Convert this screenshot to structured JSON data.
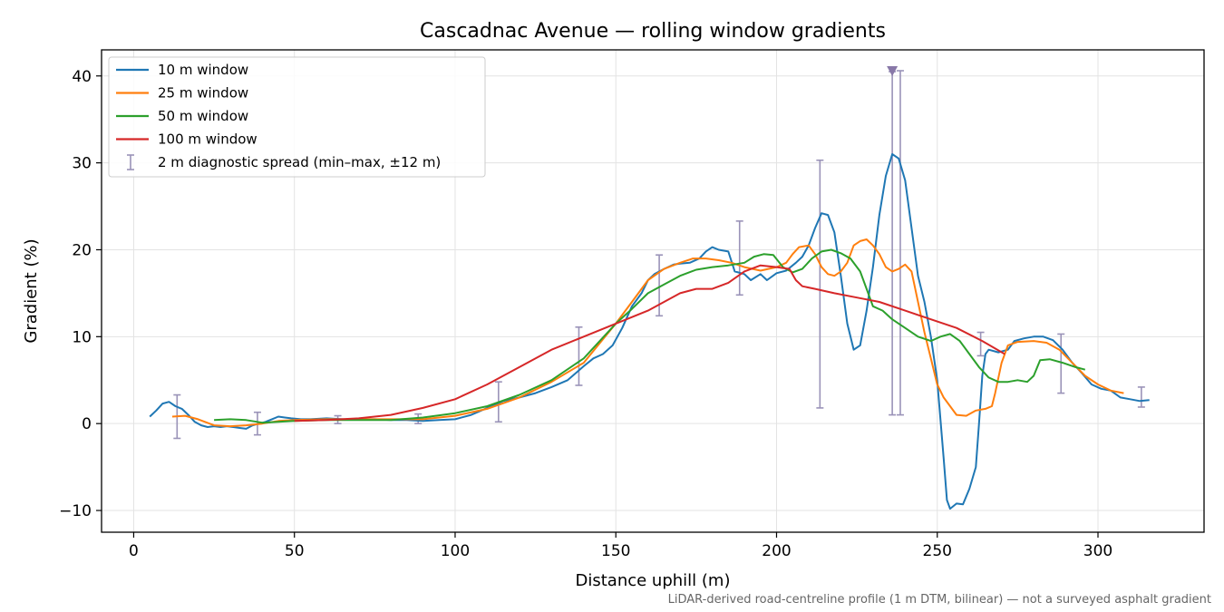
{
  "chart_data": {
    "type": "line",
    "title": "Cascadnac Avenue — rolling window gradients",
    "xlabel": "Distance uphill (m)",
    "ylabel": "Gradient (%)",
    "xlim": [
      -10,
      333
    ],
    "ylim": [
      -12.5,
      43
    ],
    "xticks": [
      0,
      50,
      100,
      150,
      200,
      250,
      300
    ],
    "yticks": [
      -10,
      0,
      10,
      20,
      30,
      40
    ],
    "xtick_labels": [
      "0",
      "50",
      "100",
      "150",
      "200",
      "250",
      "300"
    ],
    "ytick_labels": [
      "−10",
      "0",
      "10",
      "20",
      "30",
      "40"
    ],
    "grid": true,
    "legend_position": "top-left",
    "footnote": "LiDAR-derived road-centreline profile (1 m DTM, bilinear) — not a surveyed asphalt gradient",
    "series": [
      {
        "name": "10 m window",
        "color": "#1f77b4",
        "points": [
          [
            5,
            0.8
          ],
          [
            7,
            1.5
          ],
          [
            9,
            2.3
          ],
          [
            11,
            2.5
          ],
          [
            13,
            2.0
          ],
          [
            15,
            1.7
          ],
          [
            17,
            1.0
          ],
          [
            19,
            0.2
          ],
          [
            21,
            -0.2
          ],
          [
            23,
            -0.4
          ],
          [
            25,
            -0.3
          ],
          [
            27,
            -0.4
          ],
          [
            29,
            -0.3
          ],
          [
            31,
            -0.4
          ],
          [
            33,
            -0.5
          ],
          [
            35,
            -0.6
          ],
          [
            37,
            -0.2
          ],
          [
            39,
            0.0
          ],
          [
            41,
            0.2
          ],
          [
            43,
            0.5
          ],
          [
            45,
            0.8
          ],
          [
            47,
            0.7
          ],
          [
            49,
            0.6
          ],
          [
            52,
            0.5
          ],
          [
            55,
            0.5
          ],
          [
            60,
            0.6
          ],
          [
            65,
            0.5
          ],
          [
            70,
            0.5
          ],
          [
            75,
            0.5
          ],
          [
            80,
            0.4
          ],
          [
            85,
            0.4
          ],
          [
            90,
            0.3
          ],
          [
            95,
            0.4
          ],
          [
            100,
            0.5
          ],
          [
            105,
            1.0
          ],
          [
            110,
            1.8
          ],
          [
            115,
            2.6
          ],
          [
            120,
            3.0
          ],
          [
            125,
            3.5
          ],
          [
            130,
            4.2
          ],
          [
            135,
            5.0
          ],
          [
            140,
            6.6
          ],
          [
            143,
            7.5
          ],
          [
            146,
            8.0
          ],
          [
            149,
            9.0
          ],
          [
            152,
            11.0
          ],
          [
            155,
            13.5
          ],
          [
            158,
            15.0
          ],
          [
            160,
            16.5
          ],
          [
            162,
            17.2
          ],
          [
            165,
            17.8
          ],
          [
            168,
            18.3
          ],
          [
            170,
            18.4
          ],
          [
            173,
            18.5
          ],
          [
            176,
            19.0
          ],
          [
            178,
            19.8
          ],
          [
            180,
            20.3
          ],
          [
            182,
            20.0
          ],
          [
            185,
            19.8
          ],
          [
            187,
            17.5
          ],
          [
            190,
            17.2
          ],
          [
            192,
            16.5
          ],
          [
            195,
            17.2
          ],
          [
            197,
            16.5
          ],
          [
            200,
            17.3
          ],
          [
            203,
            17.6
          ],
          [
            206,
            18.5
          ],
          [
            208,
            19.2
          ],
          [
            210,
            20.5
          ],
          [
            212,
            22.5
          ],
          [
            214,
            24.2
          ],
          [
            216,
            24.0
          ],
          [
            218,
            22.0
          ],
          [
            220,
            17.0
          ],
          [
            222,
            11.5
          ],
          [
            224,
            8.5
          ],
          [
            226,
            9.0
          ],
          [
            228,
            13.0
          ],
          [
            230,
            18.0
          ],
          [
            232,
            24.0
          ],
          [
            234,
            28.5
          ],
          [
            236,
            31.0
          ],
          [
            238,
            30.5
          ],
          [
            240,
            28.0
          ],
          [
            242,
            22.5
          ],
          [
            244,
            17.0
          ],
          [
            246,
            14.0
          ],
          [
            248,
            10.0
          ],
          [
            250,
            5.0
          ],
          [
            252,
            -4.0
          ],
          [
            253,
            -8.8
          ],
          [
            254,
            -9.8
          ],
          [
            256,
            -9.2
          ],
          [
            258,
            -9.3
          ],
          [
            260,
            -7.5
          ],
          [
            262,
            -5.0
          ],
          [
            263,
            0.0
          ],
          [
            264,
            5.5
          ],
          [
            265,
            8.0
          ],
          [
            266,
            8.5
          ],
          [
            269,
            8.2
          ],
          [
            272,
            8.5
          ],
          [
            274,
            9.5
          ],
          [
            277,
            9.8
          ],
          [
            280,
            10.0
          ],
          [
            283,
            10.0
          ],
          [
            286,
            9.6
          ],
          [
            289,
            8.5
          ],
          [
            292,
            7.0
          ],
          [
            295,
            5.8
          ],
          [
            298,
            4.5
          ],
          [
            301,
            4.0
          ],
          [
            304,
            3.8
          ],
          [
            307,
            3.0
          ],
          [
            310,
            2.8
          ],
          [
            313,
            2.6
          ],
          [
            316,
            2.7
          ]
        ]
      },
      {
        "name": "25 m window",
        "color": "#ff7f0e",
        "points": [
          [
            12,
            0.8
          ],
          [
            16,
            0.9
          ],
          [
            20,
            0.5
          ],
          [
            25,
            -0.2
          ],
          [
            30,
            -0.3
          ],
          [
            35,
            -0.2
          ],
          [
            40,
            0.0
          ],
          [
            45,
            0.3
          ],
          [
            50,
            0.4
          ],
          [
            60,
            0.5
          ],
          [
            70,
            0.5
          ],
          [
            80,
            0.5
          ],
          [
            90,
            0.5
          ],
          [
            100,
            0.9
          ],
          [
            110,
            1.7
          ],
          [
            120,
            3.0
          ],
          [
            130,
            4.8
          ],
          [
            140,
            7.0
          ],
          [
            150,
            11.5
          ],
          [
            155,
            14.0
          ],
          [
            160,
            16.5
          ],
          [
            165,
            17.8
          ],
          [
            170,
            18.5
          ],
          [
            174,
            19.0
          ],
          [
            178,
            19.0
          ],
          [
            182,
            18.8
          ],
          [
            186,
            18.5
          ],
          [
            190,
            18.0
          ],
          [
            195,
            17.6
          ],
          [
            200,
            18.0
          ],
          [
            203,
            18.5
          ],
          [
            205,
            19.5
          ],
          [
            207,
            20.3
          ],
          [
            210,
            20.5
          ],
          [
            212,
            19.5
          ],
          [
            214,
            18.0
          ],
          [
            216,
            17.2
          ],
          [
            218,
            17.0
          ],
          [
            220,
            17.5
          ],
          [
            222,
            18.5
          ],
          [
            224,
            20.5
          ],
          [
            226,
            21.0
          ],
          [
            228,
            21.2
          ],
          [
            230,
            20.5
          ],
          [
            232,
            19.5
          ],
          [
            234,
            18.0
          ],
          [
            236,
            17.5
          ],
          [
            238,
            17.8
          ],
          [
            240,
            18.3
          ],
          [
            242,
            17.5
          ],
          [
            244,
            14.0
          ],
          [
            246,
            10.5
          ],
          [
            248,
            7.5
          ],
          [
            250,
            4.5
          ],
          [
            252,
            3.0
          ],
          [
            254,
            2.0
          ],
          [
            256,
            1.0
          ],
          [
            259,
            0.9
          ],
          [
            262,
            1.5
          ],
          [
            265,
            1.7
          ],
          [
            267,
            2.0
          ],
          [
            268,
            3.5
          ],
          [
            270,
            7.0
          ],
          [
            272,
            9.0
          ],
          [
            275,
            9.4
          ],
          [
            280,
            9.5
          ],
          [
            284,
            9.3
          ],
          [
            288,
            8.5
          ],
          [
            292,
            7.0
          ],
          [
            296,
            5.5
          ],
          [
            300,
            4.5
          ],
          [
            304,
            3.8
          ],
          [
            308,
            3.5
          ]
        ]
      },
      {
        "name": "50 m window",
        "color": "#2ca02c",
        "points": [
          [
            25,
            0.4
          ],
          [
            30,
            0.5
          ],
          [
            35,
            0.4
          ],
          [
            40,
            0.1
          ],
          [
            45,
            0.2
          ],
          [
            50,
            0.3
          ],
          [
            60,
            0.4
          ],
          [
            70,
            0.4
          ],
          [
            80,
            0.4
          ],
          [
            90,
            0.7
          ],
          [
            100,
            1.2
          ],
          [
            110,
            2.0
          ],
          [
            120,
            3.3
          ],
          [
            130,
            5.0
          ],
          [
            140,
            7.5
          ],
          [
            150,
            11.5
          ],
          [
            155,
            13.2
          ],
          [
            160,
            15.0
          ],
          [
            165,
            16.0
          ],
          [
            170,
            17.0
          ],
          [
            175,
            17.7
          ],
          [
            180,
            18.0
          ],
          [
            185,
            18.2
          ],
          [
            190,
            18.5
          ],
          [
            193,
            19.2
          ],
          [
            196,
            19.5
          ],
          [
            199,
            19.4
          ],
          [
            202,
            18.0
          ],
          [
            205,
            17.4
          ],
          [
            208,
            17.8
          ],
          [
            211,
            19.0
          ],
          [
            214,
            19.8
          ],
          [
            217,
            20.0
          ],
          [
            220,
            19.6
          ],
          [
            223,
            19.0
          ],
          [
            226,
            17.5
          ],
          [
            228,
            15.5
          ],
          [
            230,
            13.5
          ],
          [
            233,
            13.0
          ],
          [
            236,
            12.0
          ],
          [
            240,
            11.0
          ],
          [
            244,
            10.0
          ],
          [
            248,
            9.5
          ],
          [
            251,
            10.0
          ],
          [
            254,
            10.3
          ],
          [
            257,
            9.5
          ],
          [
            260,
            8.0
          ],
          [
            263,
            6.5
          ],
          [
            266,
            5.3
          ],
          [
            269,
            4.8
          ],
          [
            272,
            4.8
          ],
          [
            275,
            5.0
          ],
          [
            278,
            4.8
          ],
          [
            280,
            5.5
          ],
          [
            282,
            7.3
          ],
          [
            285,
            7.4
          ],
          [
            289,
            7.0
          ],
          [
            293,
            6.5
          ],
          [
            296,
            6.2
          ]
        ]
      },
      {
        "name": "100 m window",
        "color": "#d62728",
        "points": [
          [
            50,
            0.3
          ],
          [
            60,
            0.4
          ],
          [
            70,
            0.6
          ],
          [
            80,
            1.0
          ],
          [
            90,
            1.8
          ],
          [
            100,
            2.8
          ],
          [
            110,
            4.5
          ],
          [
            120,
            6.5
          ],
          [
            130,
            8.5
          ],
          [
            140,
            10.0
          ],
          [
            150,
            11.5
          ],
          [
            160,
            13.0
          ],
          [
            170,
            15.0
          ],
          [
            175,
            15.5
          ],
          [
            180,
            15.5
          ],
          [
            185,
            16.2
          ],
          [
            190,
            17.5
          ],
          [
            195,
            18.2
          ],
          [
            200,
            18.0
          ],
          [
            204,
            17.8
          ],
          [
            206,
            16.5
          ],
          [
            208,
            15.8
          ],
          [
            212,
            15.5
          ],
          [
            218,
            15.0
          ],
          [
            225,
            14.5
          ],
          [
            232,
            14.0
          ],
          [
            240,
            13.0
          ],
          [
            248,
            12.0
          ],
          [
            256,
            11.0
          ],
          [
            264,
            9.5
          ],
          [
            271,
            8.0
          ]
        ]
      }
    ],
    "diagnostic_spread": {
      "name": "2 m diagnostic spread (min–max, ±12 m)",
      "color": "#9a93b8",
      "bars": [
        {
          "x": 13.5,
          "low": -1.7,
          "high": 3.3
        },
        {
          "x": 38.5,
          "low": -1.3,
          "high": 1.3
        },
        {
          "x": 63.5,
          "low": 0.0,
          "high": 0.9
        },
        {
          "x": 88.5,
          "low": 0.0,
          "high": 1.1
        },
        {
          "x": 113.5,
          "low": 0.2,
          "high": 4.8
        },
        {
          "x": 138.5,
          "low": 4.4,
          "high": 11.1
        },
        {
          "x": 163.5,
          "low": 12.4,
          "high": 19.4
        },
        {
          "x": 188.5,
          "low": 14.8,
          "high": 23.3
        },
        {
          "x": 213.5,
          "low": 1.8,
          "high": 30.3
        },
        {
          "x": 236.0,
          "low": 1.0,
          "high": 40.5
        },
        {
          "x": 238.5,
          "low": 1.0,
          "high": 40.6
        },
        {
          "x": 263.5,
          "low": 7.8,
          "high": 10.5
        },
        {
          "x": 288.5,
          "low": 3.5,
          "high": 10.3
        },
        {
          "x": 313.5,
          "low": 1.9,
          "high": 4.2
        }
      ],
      "clip_marker": {
        "x": 236.0,
        "y": 40.5
      }
    }
  }
}
